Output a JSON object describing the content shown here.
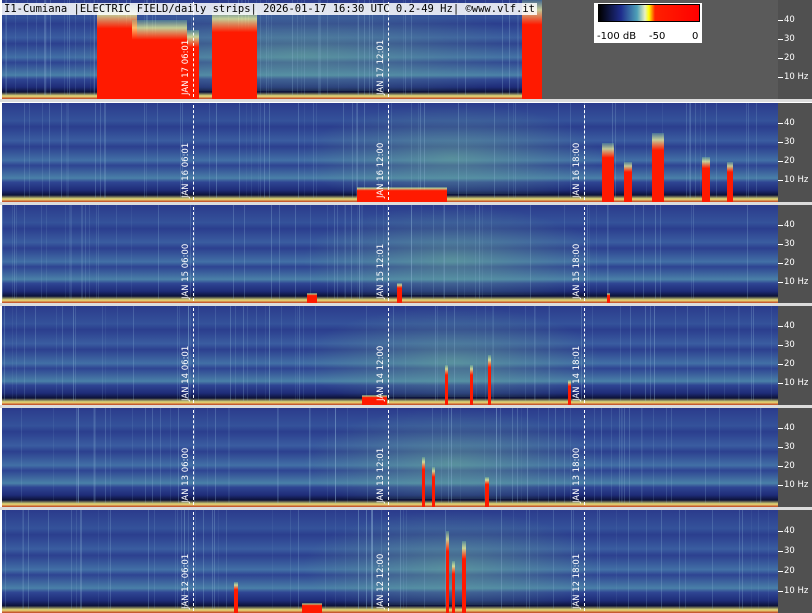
{
  "header": {
    "title": "I1-Cumiana |ELECTRIC FIELD/daily strips| 2026-01-17 16:30 UTC 0.2-49 Hz| ©www.vlf.it"
  },
  "colorbar": {
    "labels": [
      "-100 dB",
      "-50",
      "0"
    ],
    "colors": [
      "#000000",
      "#1f2d8c",
      "#4da0b8",
      "#e8f0c0",
      "#ffff00",
      "#ff2000",
      "#ff0000"
    ]
  },
  "freq_axis": {
    "labels": [
      "40",
      "30",
      "20",
      "10 Hz"
    ]
  },
  "colors": {
    "background": "#2a3a8a",
    "axis_panel": "#505050",
    "burst": "#ff1a00",
    "green_band": "#78c090"
  },
  "chart_data": {
    "type": "heatmap",
    "title": "I1-Cumiana |ELECTRIC FIELD/daily strips| 2026-01-17 16:30 UTC 0.2-49 Hz| ©www.vlf.it",
    "ylabel": "Hz",
    "yticks": [
      10,
      20,
      30,
      40
    ],
    "ylim": [
      0.2,
      49
    ],
    "colorbar_range_db": [
      -100,
      0
    ],
    "strips": [
      {
        "date": "JAN 17",
        "markers": [
          "JAN 17 06:01",
          "JAN 17 12:01"
        ],
        "covered_until": "16:30"
      },
      {
        "date": "JAN 16",
        "markers": [
          "JAN 16 06:01",
          "JAN 16 12:00",
          "JAN 16 18:00"
        ]
      },
      {
        "date": "JAN 15",
        "markers": [
          "JAN 15 06:00",
          "JAN 15 12:01",
          "JAN 15 18:00"
        ]
      },
      {
        "date": "JAN 14",
        "markers": [
          "JAN 14 06:01",
          "JAN 14 12:00",
          "JAN 14 18:01"
        ]
      },
      {
        "date": "JAN 13",
        "markers": [
          "JAN 13 06:00",
          "JAN 13 12:01",
          "JAN 13 18:00"
        ]
      },
      {
        "date": "JAN 12",
        "markers": [
          "JAN 12 06:01",
          "JAN 12 12:00",
          "JAN 12 18:01"
        ]
      }
    ]
  }
}
